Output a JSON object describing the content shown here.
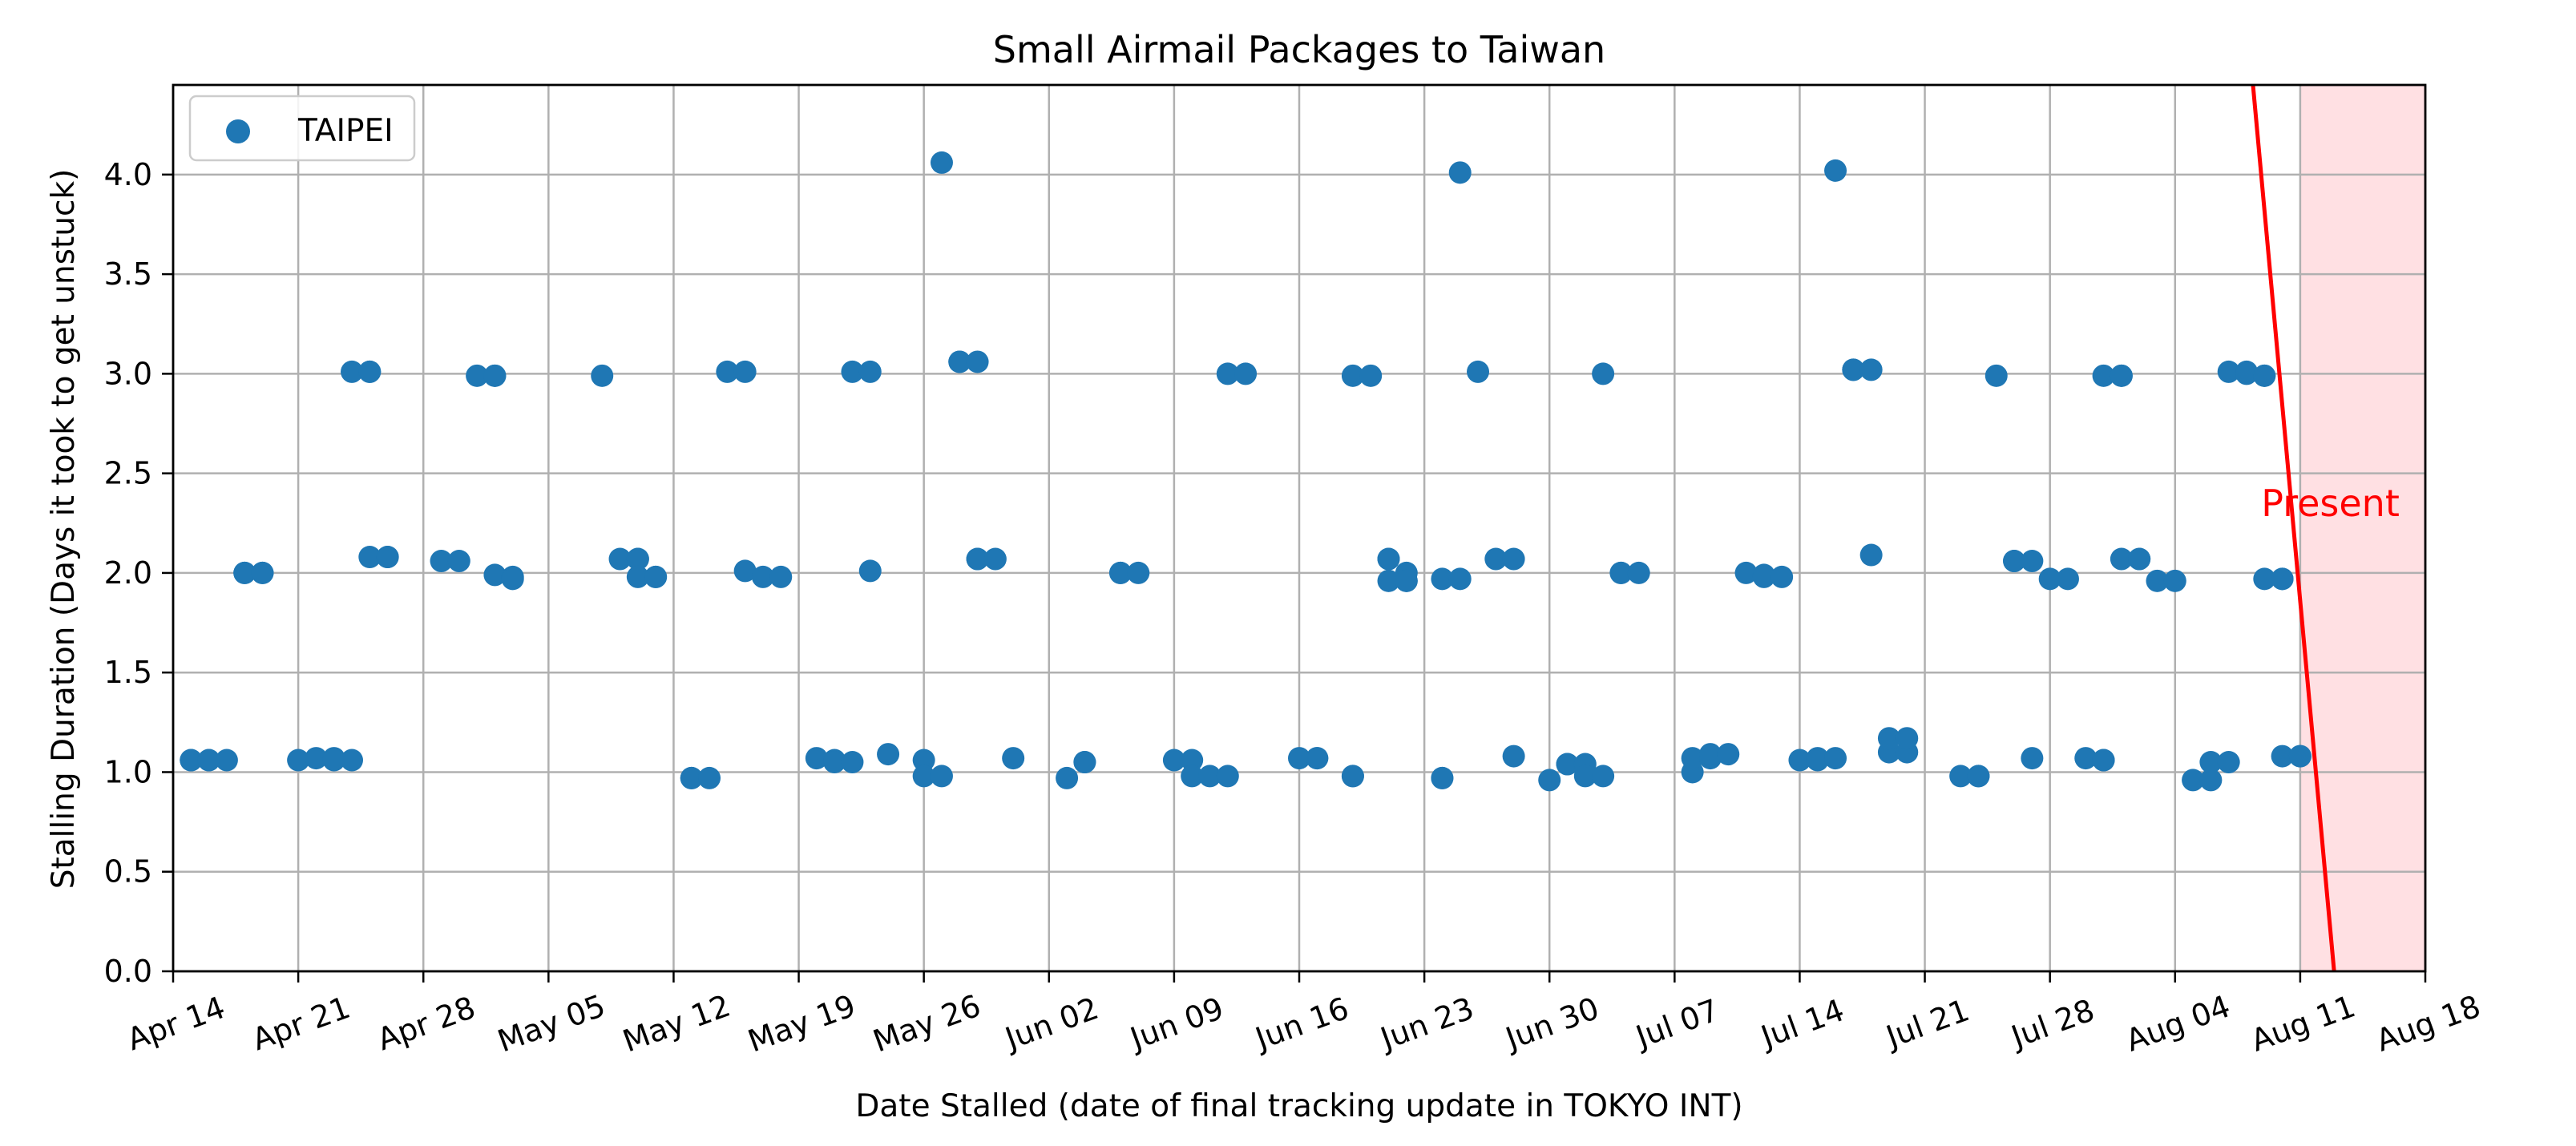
{
  "chart_data": {
    "type": "scatter",
    "title": "Small Airmail Packages to Taiwan",
    "xlabel": "Date Stalled (date of final tracking update in TOKYO INT)",
    "ylabel": "Stalling Duration (Days it took to get unstuck)",
    "xlim": [
      "Apr 14",
      "Aug 18"
    ],
    "ylim": [
      0,
      4.45
    ],
    "x_tick_labels": [
      "Apr 14",
      "Apr 21",
      "Apr 28",
      "May 05",
      "May 12",
      "May 19",
      "May 26",
      "Jun 02",
      "Jun 09",
      "Jun 16",
      "Jun 23",
      "Jun 30",
      "Jul 07",
      "Jul 14",
      "Jul 21",
      "Jul 28",
      "Aug 04",
      "Aug 11",
      "Aug 18"
    ],
    "y_tick_labels": [
      "0.0",
      "0.5",
      "1.0",
      "1.5",
      "2.0",
      "2.5",
      "3.0",
      "3.5",
      "4.0"
    ],
    "y_ticks": [
      0,
      0.5,
      1,
      1.5,
      2,
      2.5,
      3,
      3.5,
      4
    ],
    "grid": true,
    "legend_position": "top-left",
    "series": [
      {
        "name": "TAIPEI",
        "color": "#1f77b4",
        "points": [
          [
            "Apr 15",
            1.06
          ],
          [
            "Apr 15",
            1.06
          ],
          [
            "Apr 16",
            1.06
          ],
          [
            "Apr 16",
            1.06
          ],
          [
            "Apr 17",
            1.06
          ],
          [
            "Apr 18",
            2.0
          ],
          [
            "Apr 18",
            2.0
          ],
          [
            "Apr 19",
            2.0
          ],
          [
            "Apr 19",
            2.0
          ],
          [
            "Apr 21",
            1.06
          ],
          [
            "Apr 22",
            1.07
          ],
          [
            "Apr 23",
            1.07
          ],
          [
            "Apr 23",
            1.06
          ],
          [
            "Apr 24",
            1.06
          ],
          [
            "Apr 24",
            3.01
          ],
          [
            "Apr 25",
            3.01
          ],
          [
            "Apr 25",
            3.01
          ],
          [
            "Apr 25",
            2.08
          ],
          [
            "Apr 26",
            2.08
          ],
          [
            "Apr 26",
            2.08
          ],
          [
            "Apr 29",
            2.06
          ],
          [
            "Apr 30",
            2.06
          ],
          [
            "May 01",
            2.99
          ],
          [
            "May 02",
            2.99
          ],
          [
            "May 02",
            2.99
          ],
          [
            "May 02",
            1.99
          ],
          [
            "May 03",
            1.98
          ],
          [
            "May 03",
            1.97
          ],
          [
            "May 08",
            2.99
          ],
          [
            "May 09",
            2.07
          ],
          [
            "May 10",
            2.07
          ],
          [
            "May 10",
            2.07
          ],
          [
            "May 10",
            1.98
          ],
          [
            "May 11",
            1.98
          ],
          [
            "May 11",
            1.98
          ],
          [
            "May 13",
            0.97
          ],
          [
            "May 13",
            0.97
          ],
          [
            "May 14",
            0.97
          ],
          [
            "May 15",
            3.01
          ],
          [
            "May 16",
            3.01
          ],
          [
            "May 16",
            2.01
          ],
          [
            "May 17",
            1.98
          ],
          [
            "May 18",
            1.98
          ],
          [
            "May 20",
            1.07
          ],
          [
            "May 21",
            1.06
          ],
          [
            "May 21",
            1.05
          ],
          [
            "May 22",
            1.05
          ],
          [
            "May 22",
            3.01
          ],
          [
            "May 23",
            3.01
          ],
          [
            "May 23",
            2.01
          ],
          [
            "May 24",
            1.09
          ],
          [
            "May 26",
            1.06
          ],
          [
            "May 26",
            0.98
          ],
          [
            "May 27",
            0.98
          ],
          [
            "May 27",
            4.06
          ],
          [
            "May 28",
            3.06
          ],
          [
            "May 28",
            3.06
          ],
          [
            "May 29",
            3.06
          ],
          [
            "May 29",
            2.07
          ],
          [
            "May 29",
            2.07
          ],
          [
            "May 30",
            2.07
          ],
          [
            "May 31",
            1.07
          ],
          [
            "Jun 03",
            0.97
          ],
          [
            "Jun 04",
            1.05
          ],
          [
            "Jun 04",
            1.05
          ],
          [
            "Jun 06",
            2.0
          ],
          [
            "Jun 06",
            2.0
          ],
          [
            "Jun 07",
            2.0
          ],
          [
            "Jun 09",
            1.06
          ],
          [
            "Jun 10",
            1.06
          ],
          [
            "Jun 10",
            0.98
          ],
          [
            "Jun 11",
            0.98
          ],
          [
            "Jun 12",
            0.98
          ],
          [
            "Jun 12",
            3.0
          ],
          [
            "Jun 13",
            3.0
          ],
          [
            "Jun 16",
            1.07
          ],
          [
            "Jun 17",
            1.07
          ],
          [
            "Jun 17",
            1.07
          ],
          [
            "Jun 19",
            0.98
          ],
          [
            "Jun 19",
            0.98
          ],
          [
            "Jun 19",
            2.99
          ],
          [
            "Jun 20",
            2.99
          ],
          [
            "Jun 21",
            2.07
          ],
          [
            "Jun 21",
            2.07
          ],
          [
            "Jun 22",
            2.0
          ],
          [
            "Jun 21",
            1.96
          ],
          [
            "Jun 22",
            1.96
          ],
          [
            "Jun 22",
            1.96
          ],
          [
            "Jun 24",
            0.97
          ],
          [
            "Jun 24",
            0.97
          ],
          [
            "Jun 24",
            1.97
          ],
          [
            "Jun 25",
            1.97
          ],
          [
            "Jun 25",
            4.01
          ],
          [
            "Jun 26",
            3.01
          ],
          [
            "Jun 27",
            2.07
          ],
          [
            "Jun 28",
            2.07
          ],
          [
            "Jun 28",
            1.08
          ],
          [
            "Jun 30",
            0.96
          ],
          [
            "Jul 01",
            1.04
          ],
          [
            "Jul 01",
            1.04
          ],
          [
            "Jul 02",
            1.04
          ],
          [
            "Jul 02",
            0.98
          ],
          [
            "Jul 03",
            0.98
          ],
          [
            "Jul 03",
            3.0
          ],
          [
            "Jul 04",
            2.0
          ],
          [
            "Jul 04",
            2.0
          ],
          [
            "Jul 05",
            2.0
          ],
          [
            "Jul 08",
            1.0
          ],
          [
            "Jul 08",
            1.07
          ],
          [
            "Jul 09",
            1.07
          ],
          [
            "Jul 09",
            1.09
          ],
          [
            "Jul 10",
            1.09
          ],
          [
            "Jul 11",
            2.0
          ],
          [
            "Jul 12",
            1.99
          ],
          [
            "Jul 12",
            1.98
          ],
          [
            "Jul 13",
            1.98
          ],
          [
            "Jul 14",
            1.06
          ],
          [
            "Jul 15",
            1.06
          ],
          [
            "Jul 15",
            1.07
          ],
          [
            "Jul 16",
            1.07
          ],
          [
            "Jul 16",
            4.02
          ],
          [
            "Jul 17",
            3.02
          ],
          [
            "Jul 17",
            3.02
          ],
          [
            "Jul 18",
            3.02
          ],
          [
            "Jul 18",
            2.09
          ],
          [
            "Jul 19",
            1.1
          ],
          [
            "Jul 20",
            1.1
          ],
          [
            "Jul 19",
            1.17
          ],
          [
            "Jul 20",
            1.17
          ],
          [
            "Jul 23",
            0.98
          ],
          [
            "Jul 24",
            0.98
          ],
          [
            "Jul 24",
            0.98
          ],
          [
            "Jul 25",
            2.99
          ],
          [
            "Jul 26",
            2.06
          ],
          [
            "Jul 26",
            2.06
          ],
          [
            "Jul 27",
            2.06
          ],
          [
            "Jul 27",
            1.07
          ],
          [
            "Jul 28",
            1.97
          ],
          [
            "Jul 29",
            1.97
          ],
          [
            "Jul 30",
            1.07
          ],
          [
            "Jul 31",
            1.06
          ],
          [
            "Jul 31",
            1.06
          ],
          [
            "Jul 31",
            2.99
          ],
          [
            "Aug 01",
            2.99
          ],
          [
            "Aug 01",
            2.99
          ],
          [
            "Aug 01",
            2.07
          ],
          [
            "Aug 02",
            2.07
          ],
          [
            "Aug 02",
            2.07
          ],
          [
            "Aug 03",
            1.96
          ],
          [
            "Aug 04",
            1.96
          ],
          [
            "Aug 05",
            0.96
          ],
          [
            "Aug 06",
            0.96
          ],
          [
            "Aug 06",
            1.05
          ],
          [
            "Aug 07",
            1.05
          ],
          [
            "Aug 07",
            3.01
          ],
          [
            "Aug 08",
            3.01
          ],
          [
            "Aug 08",
            3.0
          ],
          [
            "Aug 09",
            2.99
          ],
          [
            "Aug 09",
            2.99
          ],
          [
            "Aug 09",
            1.97
          ],
          [
            "Aug 10",
            1.97
          ],
          [
            "Aug 10",
            1.97
          ],
          [
            "Aug 10",
            1.08
          ],
          [
            "Aug 11",
            1.08
          ],
          [
            "Aug 11",
            1.08
          ]
        ]
      }
    ],
    "annotation": {
      "text": "Present",
      "color": "#ff0000",
      "line_color": "#ff0000",
      "shade_color": "#ffe0e3",
      "line_from": [
        "Aug 08",
        4.45
      ],
      "line_to": [
        "Aug 12",
        0
      ],
      "shade_from": "Aug 11",
      "shade_to": "Aug 18",
      "label_at": [
        "Aug 09",
        2.35
      ]
    }
  }
}
